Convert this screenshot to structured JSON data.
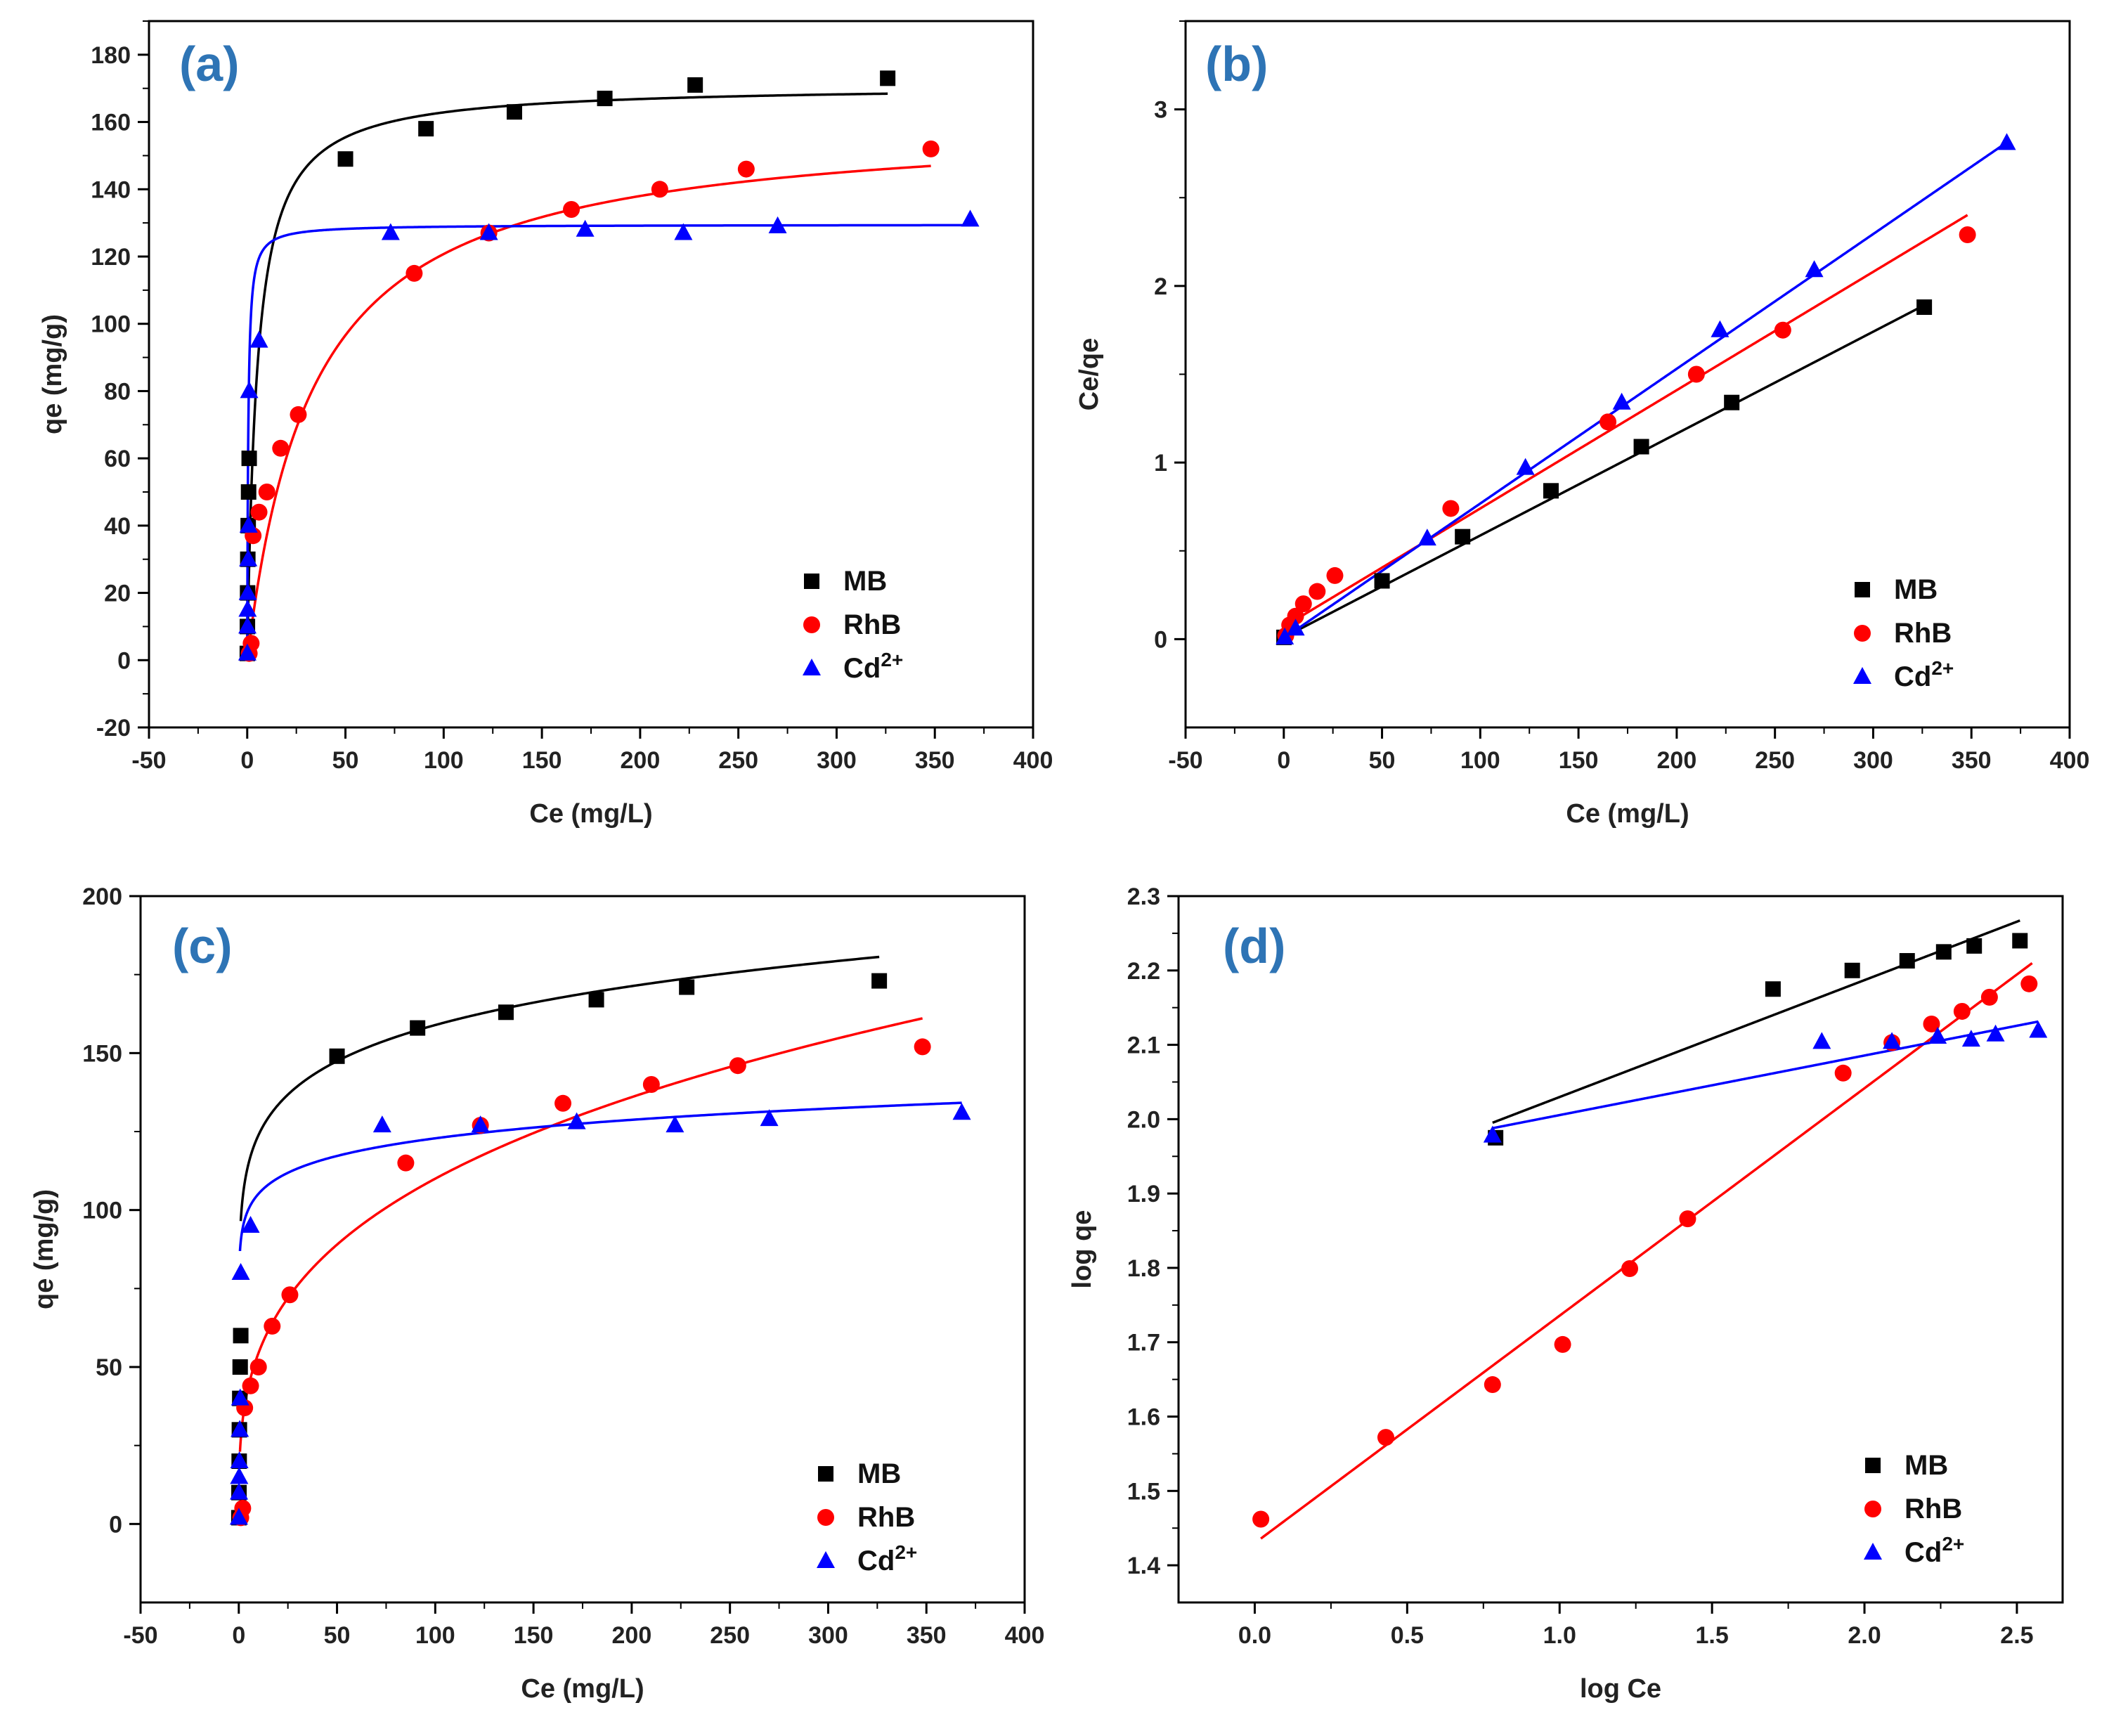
{
  "colors": {
    "MB": "#000000",
    "RhB": "#ff0000",
    "Cd": "#0000ff",
    "panel_label": "#2e74b5"
  },
  "legend": [
    {
      "key": "MB",
      "label": "MB",
      "sup": "",
      "marker": "square"
    },
    {
      "key": "RhB",
      "label": "RhB",
      "sup": "",
      "marker": "circle"
    },
    {
      "key": "Cd",
      "label": "Cd",
      "sup": "2+",
      "marker": "triangle"
    }
  ],
  "chart_data": [
    {
      "panel": "(a)",
      "type": "scatter",
      "xlabel": "Ce (mg/L)",
      "ylabel": "qe (mg/g)",
      "xlim": [
        -50,
        400
      ],
      "ylim": [
        -20,
        190
      ],
      "xticks": [
        -50,
        0,
        50,
        100,
        150,
        200,
        250,
        300,
        350,
        400
      ],
      "yticks": [
        -20,
        0,
        20,
        40,
        60,
        80,
        100,
        120,
        140,
        160,
        180
      ],
      "series": [
        {
          "name": "MB",
          "marker": "square",
          "x": [
            0.05,
            0.1,
            0.2,
            0.3,
            0.5,
            0.7,
            1.0,
            50,
            91,
            136,
            182,
            228,
            326
          ],
          "y": [
            2,
            10,
            20,
            30,
            40,
            50,
            60,
            149,
            158,
            163,
            167,
            171,
            173
          ]
        },
        {
          "name": "RhB",
          "marker": "circle",
          "x": [
            1,
            2,
            3,
            6,
            10,
            17,
            26,
            85,
            123,
            165,
            210,
            254,
            348
          ],
          "y": [
            2,
            5,
            37,
            44,
            50,
            63,
            73,
            115,
            127,
            134,
            140,
            146,
            152
          ]
        },
        {
          "name": "Cd",
          "marker": "triangle",
          "x": [
            0.05,
            0.1,
            0.2,
            0.3,
            0.5,
            0.7,
            1.0,
            6,
            73,
            123,
            172,
            222,
            270,
            368
          ],
          "y": [
            2,
            10,
            15,
            20,
            30,
            40,
            80,
            95,
            127,
            127,
            128,
            127,
            129,
            131
          ]
        }
      ],
      "fits": [
        {
          "name": "MB",
          "model": "langmuir",
          "qm": 171,
          "K": 0.2,
          "xmax": 326
        },
        {
          "name": "RhB",
          "model": "langmuir",
          "qm": 161,
          "K": 0.03,
          "xmax": 348
        },
        {
          "name": "Cd",
          "model": "langmuir",
          "qm": 129.5,
          "K": 2.0,
          "xmax": 368
        }
      ]
    },
    {
      "panel": "(b)",
      "type": "scatter",
      "xlabel": "Ce (mg/L)",
      "ylabel": "Ce/qe",
      "xlim": [
        -50,
        400
      ],
      "ylim": [
        -0.5,
        3.5
      ],
      "xticks": [
        -50,
        0,
        50,
        100,
        150,
        200,
        250,
        300,
        350,
        400
      ],
      "yticks": [
        0,
        1,
        2,
        3
      ],
      "series": [
        {
          "name": "MB",
          "marker": "square",
          "x": [
            0.1,
            50,
            91,
            136,
            182,
            228,
            326
          ],
          "y": [
            0.01,
            0.33,
            0.58,
            0.84,
            1.09,
            1.34,
            1.88
          ]
        },
        {
          "name": "RhB",
          "marker": "circle",
          "x": [
            1,
            3,
            6,
            10,
            17,
            26,
            85,
            165,
            210,
            254,
            348
          ],
          "y": [
            0.02,
            0.08,
            0.13,
            0.2,
            0.27,
            0.36,
            0.74,
            1.23,
            1.5,
            1.75,
            2.29
          ]
        },
        {
          "name": "Cd",
          "marker": "triangle",
          "x": [
            0.5,
            6,
            73,
            123,
            172,
            222,
            270,
            368
          ],
          "y": [
            0.01,
            0.06,
            0.57,
            0.97,
            1.34,
            1.75,
            2.09,
            2.81
          ]
        }
      ],
      "fits": [
        {
          "name": "MB",
          "model": "linear",
          "slope": 0.00577,
          "intercept": 0.01,
          "x0": 0,
          "x1": 326
        },
        {
          "name": "RhB",
          "model": "linear",
          "slope": 0.0067,
          "intercept": 0.07,
          "x0": 0,
          "x1": 348
        },
        {
          "name": "Cd",
          "model": "linear",
          "slope": 0.00763,
          "intercept": 0.005,
          "x0": 0,
          "x1": 368
        }
      ]
    },
    {
      "panel": "(c)",
      "type": "scatter",
      "xlabel": "Ce (mg/L)",
      "ylabel": "qe (mg/g)",
      "xlim": [
        -50,
        400
      ],
      "ylim": [
        -25,
        200
      ],
      "xticks": [
        -50,
        0,
        50,
        100,
        150,
        200,
        250,
        300,
        350,
        400
      ],
      "yticks": [
        0,
        50,
        100,
        150,
        200
      ],
      "series": [
        {
          "name": "MB",
          "marker": "square",
          "x": [
            0.05,
            0.1,
            0.2,
            0.3,
            0.5,
            0.7,
            1.0,
            50,
            91,
            136,
            182,
            228,
            326
          ],
          "y": [
            2,
            10,
            20,
            30,
            40,
            50,
            60,
            149,
            158,
            163,
            167,
            171,
            173
          ]
        },
        {
          "name": "RhB",
          "marker": "circle",
          "x": [
            1,
            2,
            3,
            6,
            10,
            17,
            26,
            85,
            123,
            165,
            210,
            254,
            348
          ],
          "y": [
            2,
            5,
            37,
            44,
            50,
            63,
            73,
            115,
            127,
            134,
            140,
            146,
            152
          ]
        },
        {
          "name": "Cd",
          "marker": "triangle",
          "x": [
            0.05,
            0.1,
            0.2,
            0.3,
            0.5,
            0.7,
            1.0,
            6,
            73,
            123,
            172,
            222,
            270,
            368
          ],
          "y": [
            2,
            10,
            15,
            20,
            30,
            40,
            80,
            95,
            127,
            127,
            128,
            127,
            129,
            131
          ]
        }
      ],
      "fits": [
        {
          "name": "MB",
          "model": "freundlich",
          "Kf": 96.5,
          "n": 9.23,
          "x0": 1,
          "x1": 326
        },
        {
          "name": "RhB",
          "model": "freundlich",
          "Kf": 26.9,
          "n": 3.27,
          "x0": 0.6,
          "x1": 348
        },
        {
          "name": "Cd",
          "model": "freundlich",
          "Kf": 90,
          "n": 14.8,
          "x0": 0.6,
          "x1": 368
        }
      ]
    },
    {
      "panel": "(d)",
      "type": "scatter",
      "xlabel": "log Ce",
      "ylabel": "log qe",
      "xlim": [
        -0.25,
        2.65
      ],
      "ylim": [
        1.35,
        2.3
      ],
      "xticks": [
        0.0,
        0.5,
        1.0,
        1.5,
        2.0,
        2.5
      ],
      "yticks": [
        1.4,
        1.5,
        1.6,
        1.7,
        1.8,
        1.9,
        2.0,
        2.1,
        2.2,
        2.3
      ],
      "xdecimals": 1,
      "ydecimals": 1,
      "series": [
        {
          "name": "MB",
          "marker": "square",
          "x": [
            0.79,
            1.7,
            1.96,
            2.14,
            2.26,
            2.36,
            2.51
          ],
          "y": [
            1.975,
            2.175,
            2.2,
            2.213,
            2.225,
            2.233,
            2.24
          ]
        },
        {
          "name": "RhB",
          "marker": "circle",
          "x": [
            0.02,
            0.43,
            0.78,
            1.01,
            1.23,
            1.42,
            1.93,
            2.09,
            2.22,
            2.32,
            2.41,
            2.54
          ],
          "y": [
            1.462,
            1.572,
            1.643,
            1.697,
            1.799,
            1.866,
            2.062,
            2.103,
            2.128,
            2.145,
            2.164,
            2.182
          ]
        },
        {
          "name": "Cd",
          "marker": "triangle",
          "x": [
            0.78,
            1.86,
            2.09,
            2.24,
            2.35,
            2.43,
            2.57
          ],
          "y": [
            1.978,
            2.104,
            2.104,
            2.111,
            2.107,
            2.114,
            2.119
          ]
        }
      ],
      "fits": [
        {
          "name": "MB",
          "model": "linear",
          "slope": 0.1572,
          "intercept": 1.8726,
          "x0": 0.78,
          "x1": 2.51
        },
        {
          "name": "RhB",
          "model": "linear",
          "slope": 0.3059,
          "intercept": 1.4298,
          "x0": 0.02,
          "x1": 2.55
        },
        {
          "name": "Cd",
          "model": "linear",
          "slope": 0.0801,
          "intercept": 1.9254,
          "x0": 0.78,
          "x1": 2.57
        }
      ]
    }
  ]
}
